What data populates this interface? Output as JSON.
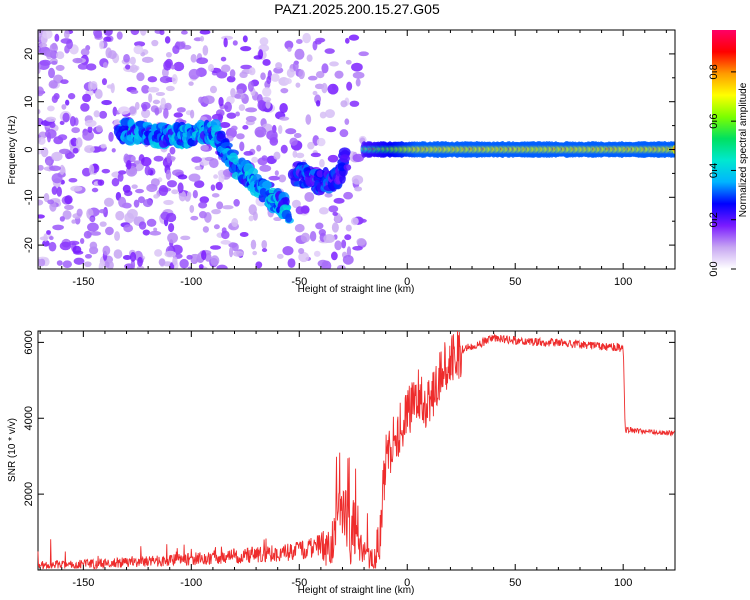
{
  "title": "PAZ1.2025.200.15.27.G05",
  "chart_data": [
    {
      "type": "heatmap",
      "xlabel": "Height of straight line (km)",
      "ylabel": "Frequency (Hz)",
      "xlim": [
        -171,
        124
      ],
      "ylim": [
        -25,
        25
      ],
      "xticks": [
        -150,
        -100,
        -50,
        0,
        50,
        100
      ],
      "yticks": [
        -20,
        -10,
        0,
        10,
        20
      ],
      "colorbar": {
        "label": "Normalized spectral amplitude",
        "range": [
          0,
          0.97
        ],
        "ticks": [
          0.0,
          0.2,
          0.4,
          0.6,
          0.8
        ],
        "tick_labels": [
          "0.0",
          "0.2",
          "0.4",
          "0.6",
          "0.8"
        ],
        "colors": [
          "#ffffff",
          "#c7a6f2",
          "#7a1bff",
          "#0000ff",
          "#00b4ff",
          "#00e8d0",
          "#00e060",
          "#7cff00",
          "#ffff00",
          "#ff9a00",
          "#ff0000",
          "#ff0066"
        ]
      },
      "features": [
        {
          "name": "diffuse scatter",
          "x_range": [
            -171,
            -20
          ],
          "y_range": [
            -25,
            25
          ],
          "amplitude": 0.1
        },
        {
          "name": "descending signal trace",
          "points": [
            [
              -133,
              4
            ],
            [
              -115,
              3
            ],
            [
              -100,
              3
            ],
            [
              -90,
              4
            ],
            [
              -85,
              0
            ],
            [
              -75,
              -5
            ],
            [
              -68,
              -8
            ],
            [
              -60,
              -11
            ],
            [
              -55,
              -13
            ]
          ],
          "amplitude": 0.25
        },
        {
          "name": "secondary trace",
          "points": [
            [
              -52,
              -5
            ],
            [
              -45,
              -6
            ],
            [
              -40,
              -7
            ],
            [
              -32,
              -6
            ],
            [
              -28,
              -2
            ]
          ],
          "amplitude": 0.2
        },
        {
          "name": "lock-in band",
          "points": [
            [
              -20,
              0
            ],
            [
              0,
              0
            ],
            [
              50,
              0
            ],
            [
              124,
              0
            ]
          ],
          "half_width_hz": 2.5,
          "core_amplitude": 0.9
        }
      ]
    },
    {
      "type": "line",
      "xlabel": "Height of straight line (km)",
      "ylabel": "SNR (10 * v/v)",
      "xlim": [
        -171,
        124
      ],
      "ylim": [
        0,
        6300
      ],
      "xticks": [
        -150,
        -100,
        -50,
        0,
        50,
        100
      ],
      "yticks": [
        2000,
        4000,
        6000
      ],
      "color": "#ee2c2c",
      "anchors": [
        [
          -171,
          120
        ],
        [
          -150,
          150
        ],
        [
          -130,
          200
        ],
        [
          -110,
          250
        ],
        [
          -90,
          330
        ],
        [
          -75,
          380
        ],
        [
          -60,
          450
        ],
        [
          -50,
          500
        ],
        [
          -40,
          650
        ],
        [
          -35,
          900
        ],
        [
          -30,
          1200
        ],
        [
          -25,
          1000
        ],
        [
          -20,
          400
        ],
        [
          -15,
          300
        ],
        [
          -13,
          700
        ],
        [
          -10,
          3000
        ],
        [
          -5,
          3500
        ],
        [
          0,
          4200
        ],
        [
          5,
          4600
        ],
        [
          10,
          4300
        ],
        [
          15,
          5200
        ],
        [
          20,
          5500
        ],
        [
          25,
          5800
        ],
        [
          30,
          5900
        ],
        [
          40,
          6100
        ],
        [
          50,
          6050
        ],
        [
          60,
          6000
        ],
        [
          70,
          6000
        ],
        [
          80,
          5950
        ],
        [
          90,
          5900
        ],
        [
          100,
          5850
        ],
        [
          101,
          3700
        ],
        [
          110,
          3650
        ],
        [
          124,
          3600
        ]
      ]
    }
  ]
}
